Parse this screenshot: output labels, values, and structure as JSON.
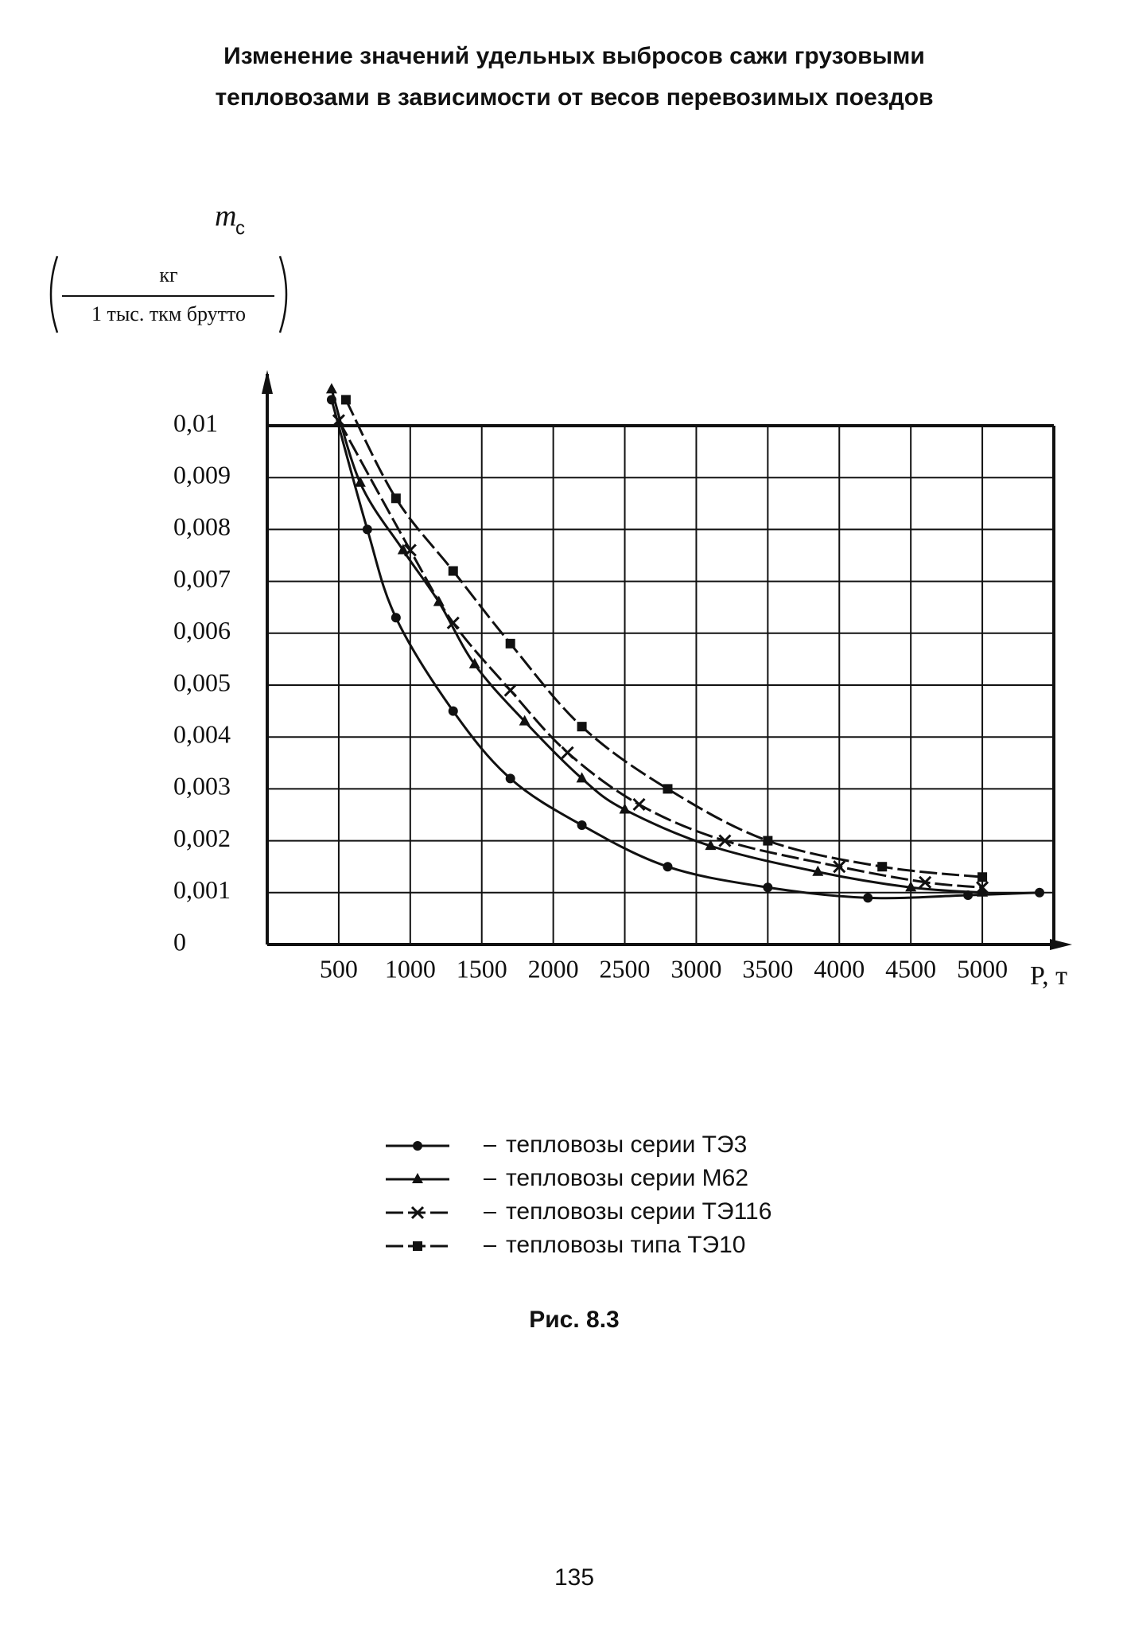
{
  "chart_data": {
    "type": "line",
    "title": [
      "Изменение значений удельных выбросов сажи грузовыми",
      "тепловозами в зависимости от весов перевозимых поездов"
    ],
    "ylabel": {
      "symbol": "m",
      "subscript": "с",
      "unit_numerator": "кг",
      "unit_denominator": "1 тыс. ткм брутто"
    },
    "xlabel": "P, т",
    "xlim": [
      0,
      5500
    ],
    "xticks": [
      500,
      1000,
      1500,
      2000,
      2500,
      3000,
      3500,
      4000,
      4500,
      5000
    ],
    "ylim": [
      0,
      0.01
    ],
    "yticks": [
      0,
      {
        "value": 0.001,
        "label": "0,001"
      },
      {
        "value": 0.002,
        "label": "0,002"
      },
      {
        "value": 0.003,
        "label": "0,003"
      },
      {
        "value": 0.004,
        "label": "0,004"
      },
      {
        "value": 0.005,
        "label": "0,005"
      },
      {
        "value": 0.006,
        "label": "0,006"
      },
      {
        "value": 0.007,
        "label": "0,007"
      },
      {
        "value": 0.008,
        "label": "0,008"
      },
      {
        "value": 0.009,
        "label": "0,009"
      },
      {
        "value": 0.01,
        "label": "0,01"
      }
    ],
    "grid": true,
    "series": [
      {
        "name": "тепловозы серии ТЭ3",
        "color": "#111111",
        "marker": "circle",
        "style": "solid",
        "x": [
          450,
          700,
          900,
          1300,
          1700,
          2200,
          2800,
          3500,
          4200,
          4900,
          5400
        ],
        "values": [
          0.0105,
          0.008,
          0.0063,
          0.0045,
          0.0032,
          0.0023,
          0.0015,
          0.0011,
          0.0009,
          0.00095,
          0.001
        ]
      },
      {
        "name": "тепловозы серии М62",
        "color": "#111111",
        "marker": "triangle",
        "style": "solid",
        "x": [
          450,
          650,
          950,
          1200,
          1450,
          1800,
          2200,
          2500,
          3100,
          3850,
          4500,
          5000
        ],
        "values": [
          0.0107,
          0.0089,
          0.0076,
          0.0066,
          0.0054,
          0.0043,
          0.0032,
          0.0026,
          0.0019,
          0.0014,
          0.0011,
          0.001
        ]
      },
      {
        "name": "тепловозы серии ТЭ116",
        "color": "#111111",
        "marker": "x",
        "style": "dashed",
        "x": [
          500,
          1000,
          1300,
          1700,
          2100,
          2600,
          3200,
          4000,
          4600,
          5000
        ],
        "values": [
          0.0101,
          0.0076,
          0.0062,
          0.0049,
          0.0037,
          0.0027,
          0.002,
          0.0015,
          0.0012,
          0.0011
        ]
      },
      {
        "name": "тепловозы типа ТЭ10",
        "color": "#111111",
        "marker": "square",
        "style": "dashed",
        "x": [
          550,
          900,
          1300,
          1700,
          2200,
          2800,
          3500,
          4300,
          5000
        ],
        "values": [
          0.0105,
          0.0086,
          0.0072,
          0.0058,
          0.0042,
          0.003,
          0.002,
          0.0015,
          0.0013
        ]
      }
    ],
    "caption": "Рис. 8.3",
    "page_number": "135"
  }
}
